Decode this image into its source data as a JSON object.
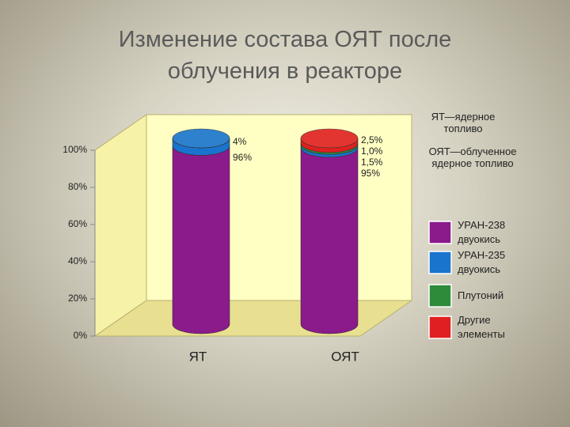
{
  "chart_data": {
    "type": "stacked-cylinder",
    "title": "Изменение состава ОЯТ после облучения в реакторе",
    "notes": [
      "ЯТ—ядерное топливо",
      "ОЯТ—облученное ядерное топливо"
    ],
    "categories": [
      "ЯТ",
      "ОЯТ"
    ],
    "series": [
      {
        "name": "УРАН-238 двуокись",
        "color": "#8b1a8b",
        "values": [
          96,
          95
        ],
        "value_labels": [
          "96%",
          "95%"
        ]
      },
      {
        "name": "УРАН-235 двуокись",
        "color": "#1874cd",
        "values": [
          4,
          1.5
        ],
        "value_labels": [
          "4%",
          "1,5%"
        ]
      },
      {
        "name": "Плутоний",
        "color": "#2e8b3a",
        "values": [
          0,
          1.0
        ],
        "value_labels": [
          null,
          "1,0%"
        ]
      },
      {
        "name": "Другие элементы",
        "color": "#e02020",
        "values": [
          0,
          2.5
        ],
        "value_labels": [
          null,
          "2,5%"
        ]
      }
    ],
    "ylim": [
      0,
      100
    ],
    "yticks": [
      {
        "value": 0,
        "label": "0%"
      },
      {
        "value": 20,
        "label": "20%"
      },
      {
        "value": 40,
        "label": "40%"
      },
      {
        "value": 60,
        "label": "60%"
      },
      {
        "value": 80,
        "label": "80%"
      },
      {
        "value": 100,
        "label": "100%"
      }
    ]
  }
}
